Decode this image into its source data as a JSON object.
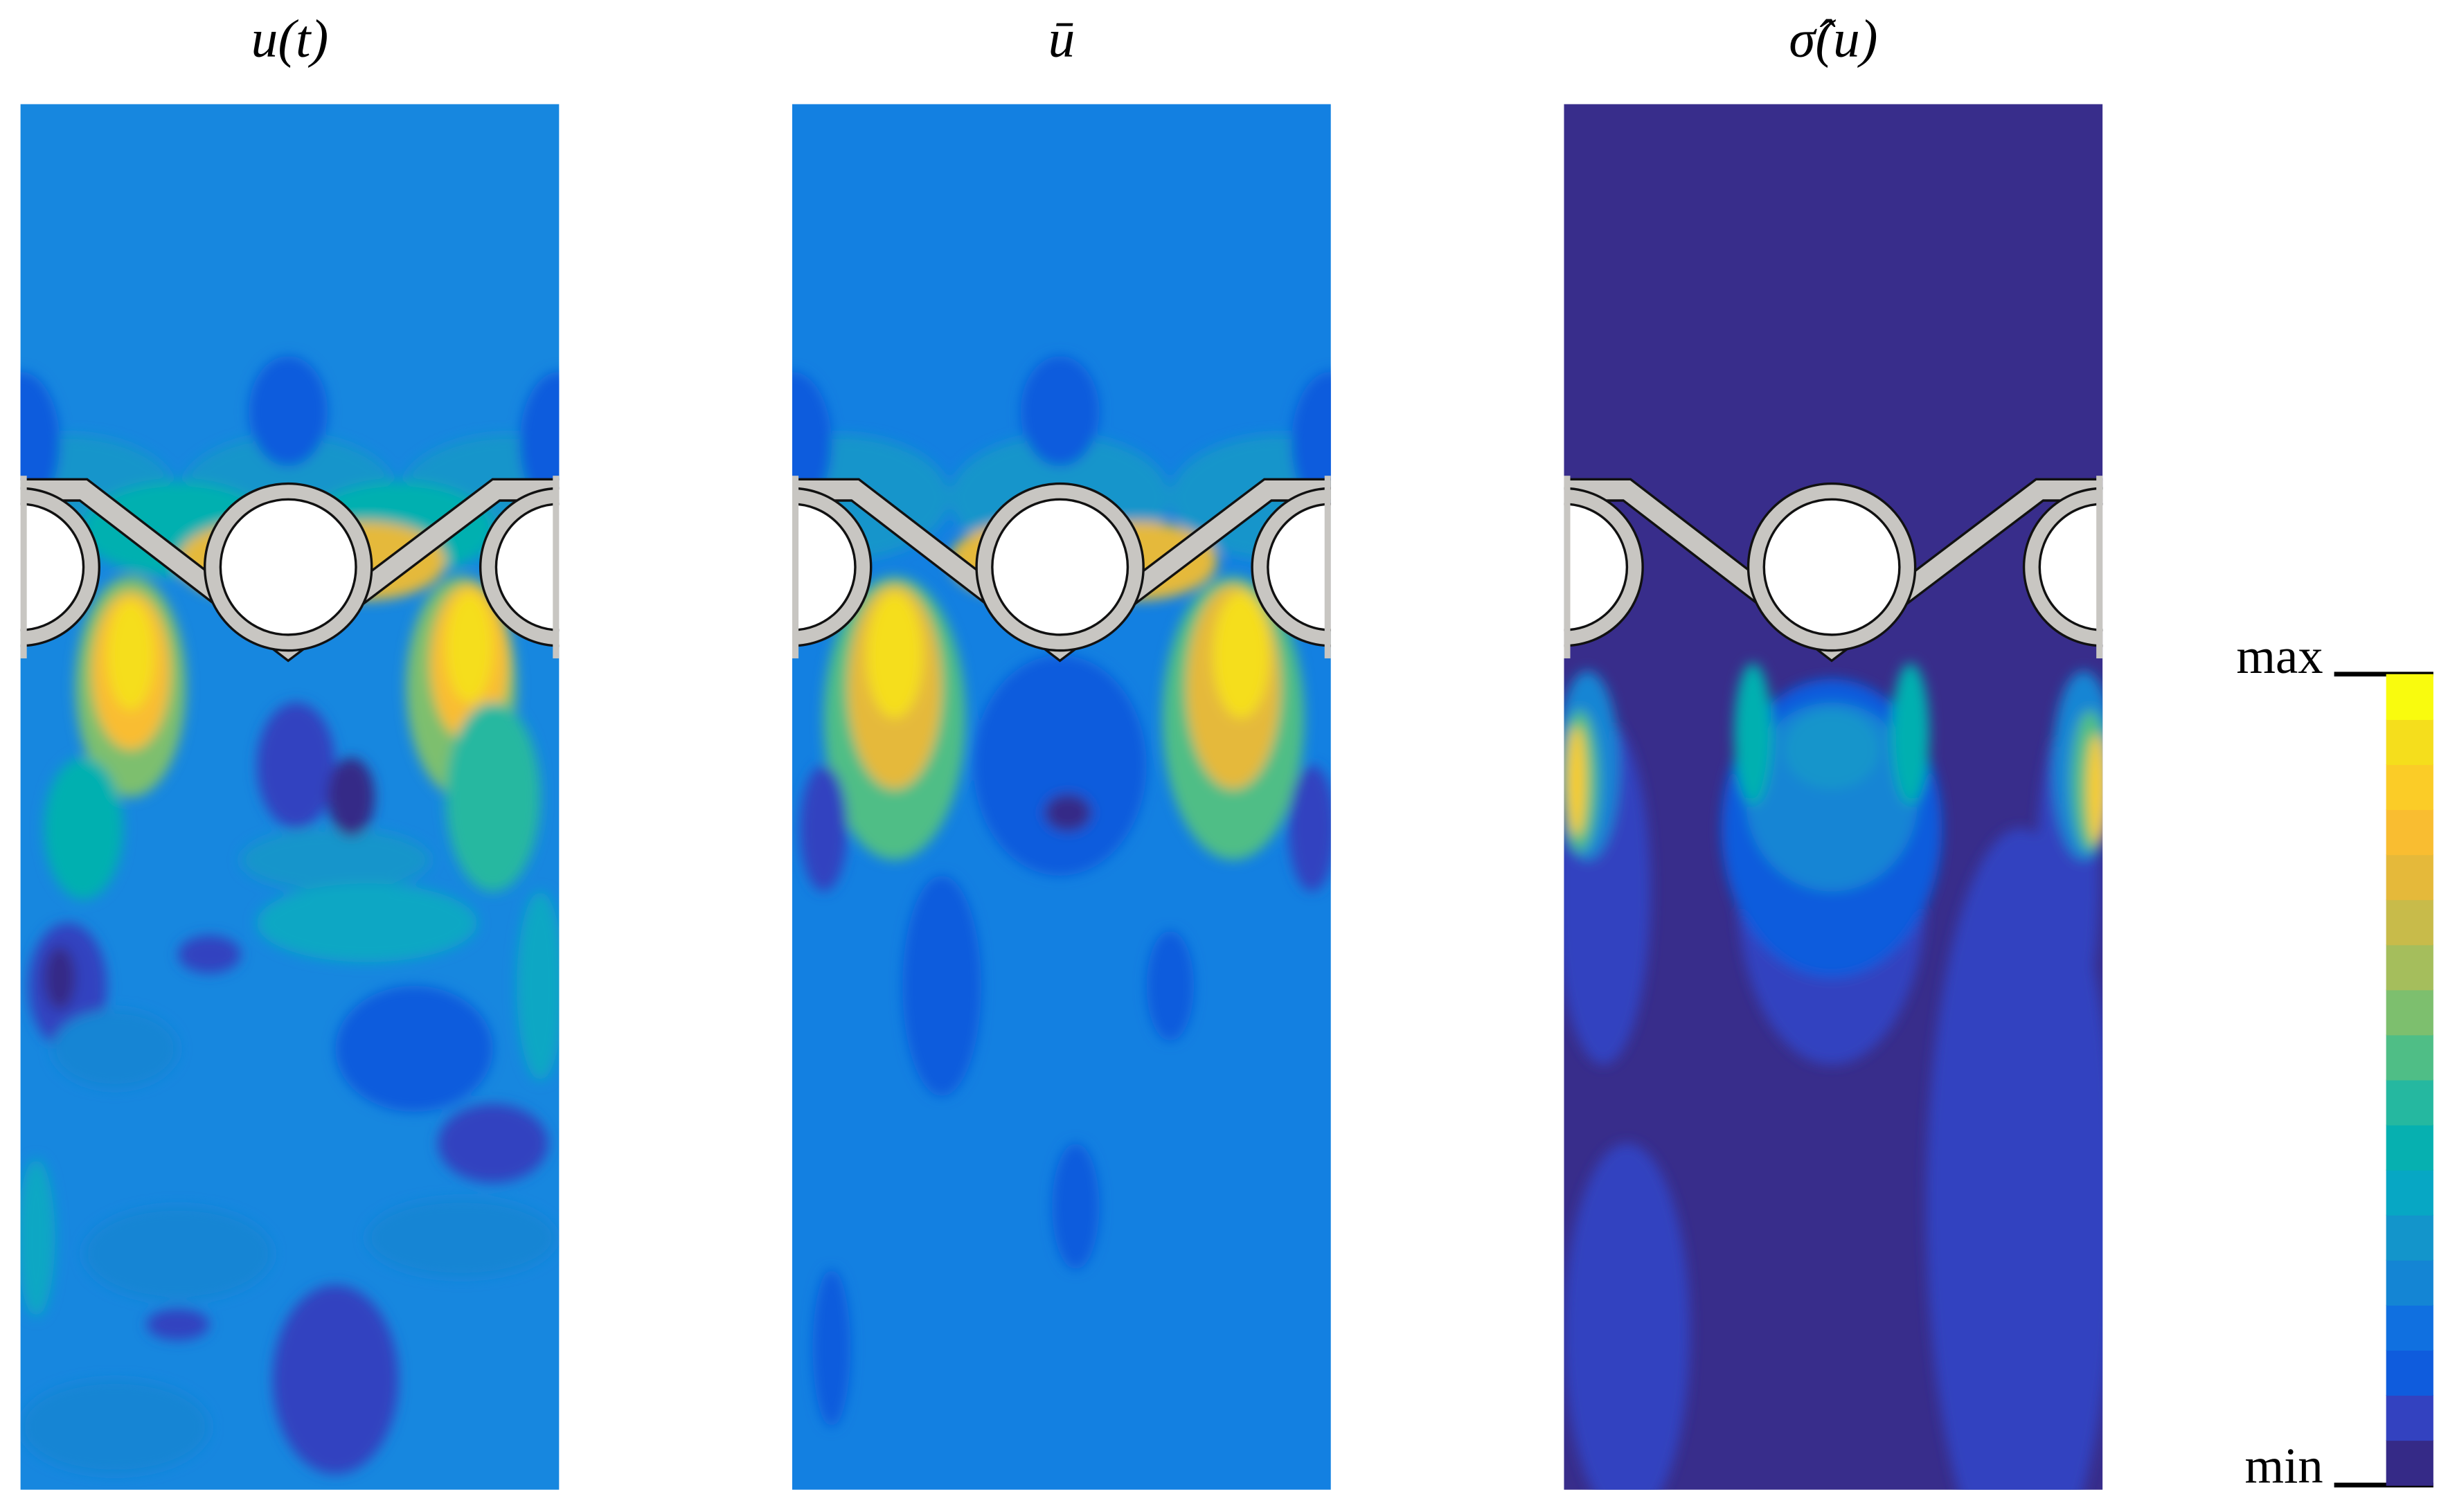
{
  "panels": [
    {
      "title": "u(t)",
      "background": "#1787df"
    },
    {
      "title": "ū",
      "background": "#1380e1"
    },
    {
      "title": "σ̂(u)",
      "background": "#382d8b"
    }
  ],
  "colorbar": {
    "max_label": "max",
    "min_label": "min",
    "colors": [
      "#352a87",
      "#3342c0",
      "#0f5cdd",
      "#1070e0",
      "#1485d4",
      "#1395cb",
      "#07a7c4",
      "#06b0b0",
      "#25b8a0",
      "#4fbe86",
      "#7dbf6e",
      "#a5be5c",
      "#c8bb4a",
      "#e5b93a",
      "#f9bd31",
      "#fbcc27",
      "#f5de1c",
      "#f9fb0e"
    ]
  }
}
